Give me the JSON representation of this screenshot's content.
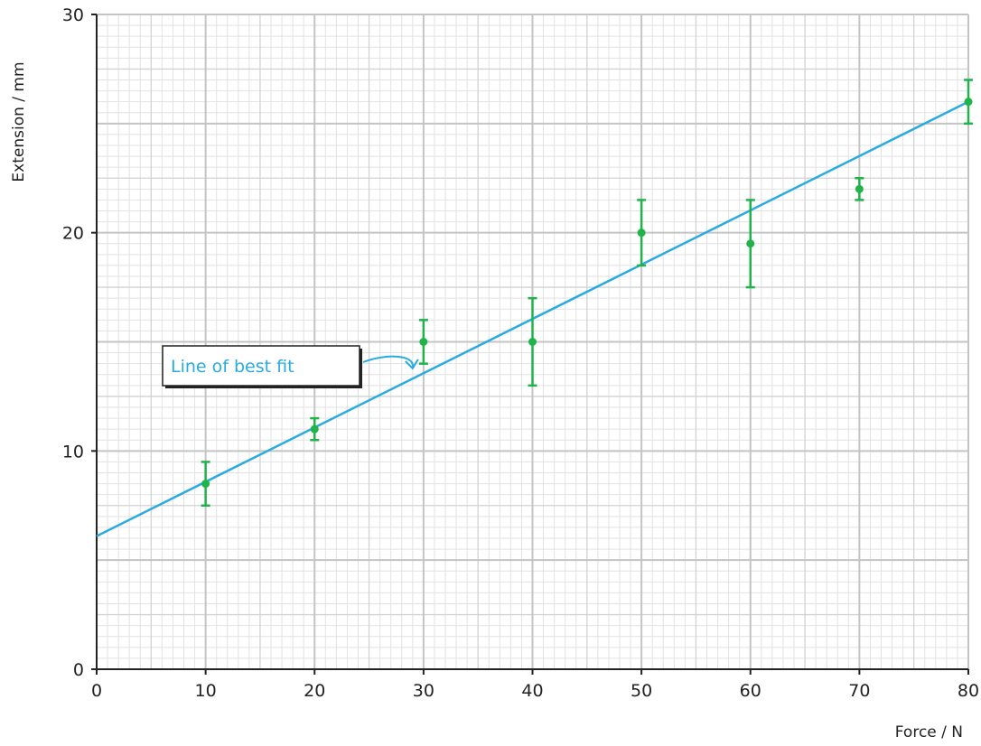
{
  "chart_data": {
    "type": "scatter",
    "title": "",
    "xlabel": "Force / N",
    "ylabel": "Extension / mm",
    "xlim": [
      0,
      80
    ],
    "ylim": [
      0,
      30
    ],
    "x_ticks": [
      0,
      10,
      20,
      30,
      40,
      50,
      60,
      70,
      80
    ],
    "y_ticks": [
      0,
      10,
      20,
      30
    ],
    "grid": true,
    "series": [
      {
        "points": [
          {
            "x": 10,
            "y": 8.5,
            "err_low": 7.5,
            "err_high": 9.5
          },
          {
            "x": 20,
            "y": 11,
            "err_low": 10.5,
            "err_high": 11.5
          },
          {
            "x": 30,
            "y": 15,
            "err_low": 14,
            "err_high": 16
          },
          {
            "x": 40,
            "y": 15,
            "err_low": 13,
            "err_high": 17
          },
          {
            "x": 50,
            "y": 20,
            "err_low": 18.5,
            "err_high": 21.5
          },
          {
            "x": 60,
            "y": 19.5,
            "err_low": 17.5,
            "err_high": 21.5
          },
          {
            "x": 70,
            "y": 22,
            "err_low": 21.5,
            "err_high": 22.5
          },
          {
            "x": 80,
            "y": 26,
            "err_low": 25,
            "err_high": 27
          }
        ],
        "color": "#1fb34a"
      }
    ],
    "best_fit": {
      "x1": 0,
      "y1": 6.1,
      "x2": 80,
      "y2": 26,
      "color": "#29abe2"
    },
    "annotations": [
      {
        "text": "Line of best fit",
        "color": "#29abe2",
        "points_to": {
          "x": 29,
          "y": 13.7
        }
      }
    ]
  }
}
